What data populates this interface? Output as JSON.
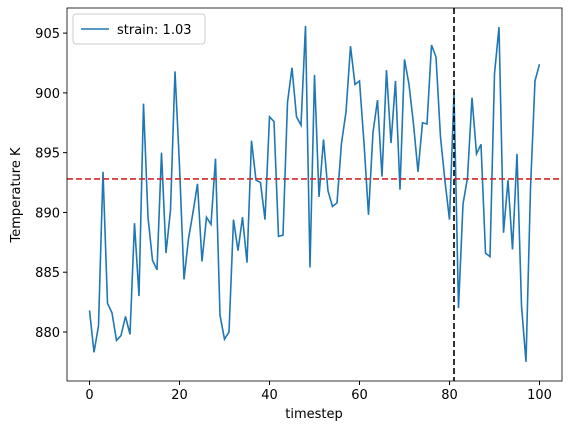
{
  "chart_data": {
    "type": "line",
    "xlabel": "timestep",
    "ylabel": "Temperature K",
    "x": [
      0,
      1,
      2,
      3,
      4,
      5,
      6,
      7,
      8,
      9,
      10,
      11,
      12,
      13,
      14,
      15,
      16,
      17,
      18,
      19,
      20,
      21,
      22,
      23,
      24,
      25,
      26,
      27,
      28,
      29,
      30,
      31,
      32,
      33,
      34,
      35,
      36,
      37,
      38,
      39,
      40,
      41,
      42,
      43,
      44,
      45,
      46,
      47,
      48,
      49,
      50,
      51,
      52,
      53,
      54,
      55,
      56,
      57,
      58,
      59,
      60,
      61,
      62,
      63,
      64,
      65,
      66,
      67,
      68,
      69,
      70,
      71,
      72,
      73,
      74,
      75,
      76,
      77,
      78,
      79,
      80,
      81,
      82,
      83,
      84,
      85,
      86,
      87,
      88,
      89,
      90,
      91,
      92,
      93,
      94,
      95,
      96,
      97,
      98,
      99,
      100
    ],
    "series": [
      {
        "name": "strain: 1.03",
        "color": "#1f77b4",
        "values": [
          881.8,
          878.3,
          880.5,
          893.4,
          882.4,
          881.6,
          879.3,
          879.7,
          881.3,
          879.8,
          889.1,
          883.0,
          899.1,
          889.6,
          886.0,
          885.2,
          895.0,
          886.6,
          890.2,
          901.8,
          893.9,
          884.4,
          887.8,
          890.0,
          892.4,
          885.9,
          889.6,
          889.0,
          894.5,
          881.4,
          879.4,
          880.0,
          889.4,
          886.8,
          889.6,
          885.8,
          896.0,
          892.7,
          892.5,
          889.4,
          898.0,
          897.6,
          888.0,
          888.1,
          899.2,
          902.1,
          898.0,
          897.3,
          905.6,
          885.4,
          901.5,
          891.3,
          896.1,
          891.8,
          890.5,
          890.8,
          895.8,
          898.4,
          903.9,
          900.7,
          901.0,
          895.8,
          889.8,
          896.7,
          899.4,
          893.0,
          901.9,
          895.8,
          901.0,
          891.9,
          902.8,
          900.7,
          897.4,
          893.4,
          897.5,
          897.4,
          904.0,
          903.0,
          896.3,
          892.6,
          889.4,
          900.0,
          882.0,
          890.7,
          892.9,
          899.6,
          894.9,
          895.7,
          886.6,
          886.3,
          901.6,
          905.5,
          888.3,
          892.7,
          886.9,
          894.9,
          882.2,
          877.5,
          892.0,
          901.0,
          902.4
        ]
      }
    ],
    "hlines": [
      {
        "value": 892.8,
        "color": "#d62728"
      }
    ],
    "vlines": [
      {
        "value": 81,
        "color": "#000000"
      }
    ],
    "xlim": [
      -5,
      105
    ],
    "xticks": [
      0,
      20,
      40,
      60,
      80,
      100
    ],
    "ylim": [
      875.9,
      907.1
    ],
    "yticks": [
      880,
      885,
      890,
      895,
      900,
      905
    ],
    "legend": "upper left"
  }
}
